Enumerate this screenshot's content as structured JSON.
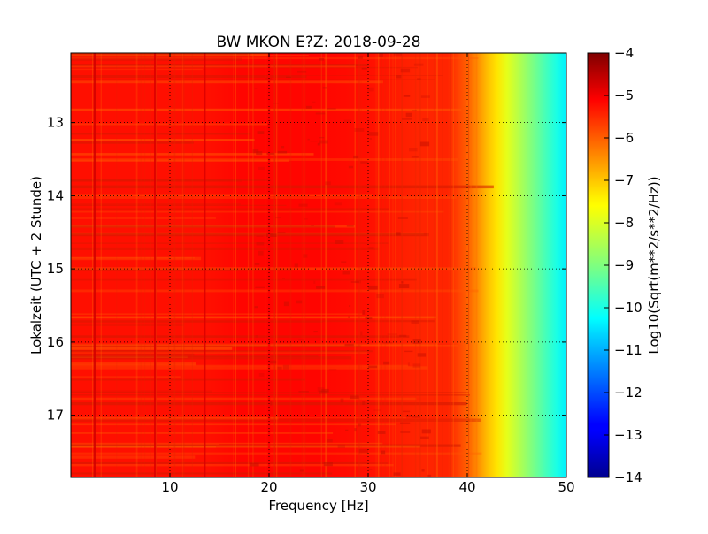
{
  "chart_data": {
    "type": "heatmap",
    "title": "BW MKON E?Z: 2018-09-28",
    "xlabel": "Frequency [Hz]",
    "ylabel": "Lokalzeit (UTC + 2 Stunde)",
    "xlim": [
      0.0,
      50.0
    ],
    "ylim": [
      12.05,
      17.85
    ],
    "y_inverted": true,
    "x_ticks": [
      10,
      20,
      30,
      40,
      50
    ],
    "x_tick_labels": [
      "10",
      "20",
      "30",
      "40",
      "50"
    ],
    "y_ticks": [
      13,
      14,
      15,
      16,
      17
    ],
    "y_tick_labels": [
      "13",
      "14",
      "15",
      "16",
      "17"
    ],
    "grid": true,
    "colormap": "jet",
    "colorbar": {
      "label": "Log10(Sqrt(m**2/s**2/Hz))",
      "min": -14,
      "max": -4,
      "ticks": [
        -4,
        -5,
        -6,
        -7,
        -8,
        -9,
        -10,
        -11,
        -12,
        -13,
        -14
      ],
      "tick_labels": [
        "−4",
        "−5",
        "−6",
        "−7",
        "−8",
        "−9",
        "−10",
        "−11",
        "−12",
        "−13",
        "−14"
      ]
    },
    "frequency_profile": {
      "frequency_hz": [
        0,
        2,
        2.4,
        2.8,
        4,
        8,
        8.5,
        9,
        13,
        13.5,
        14,
        20,
        25,
        30,
        35,
        38,
        39.5,
        41,
        42,
        43,
        44,
        45,
        46,
        47,
        48,
        49,
        50
      ],
      "log10_amplitude": [
        -5.4,
        -5.4,
        -4.8,
        -5.4,
        -5.4,
        -5.4,
        -4.9,
        -5.4,
        -5.4,
        -4.9,
        -5.4,
        -5.2,
        -5.3,
        -5.4,
        -5.6,
        -5.6,
        -6.0,
        -6.6,
        -7.1,
        -7.5,
        -8.0,
        -8.4,
        -8.8,
        -9.2,
        -9.6,
        -10.0,
        -10.4
      ]
    }
  }
}
